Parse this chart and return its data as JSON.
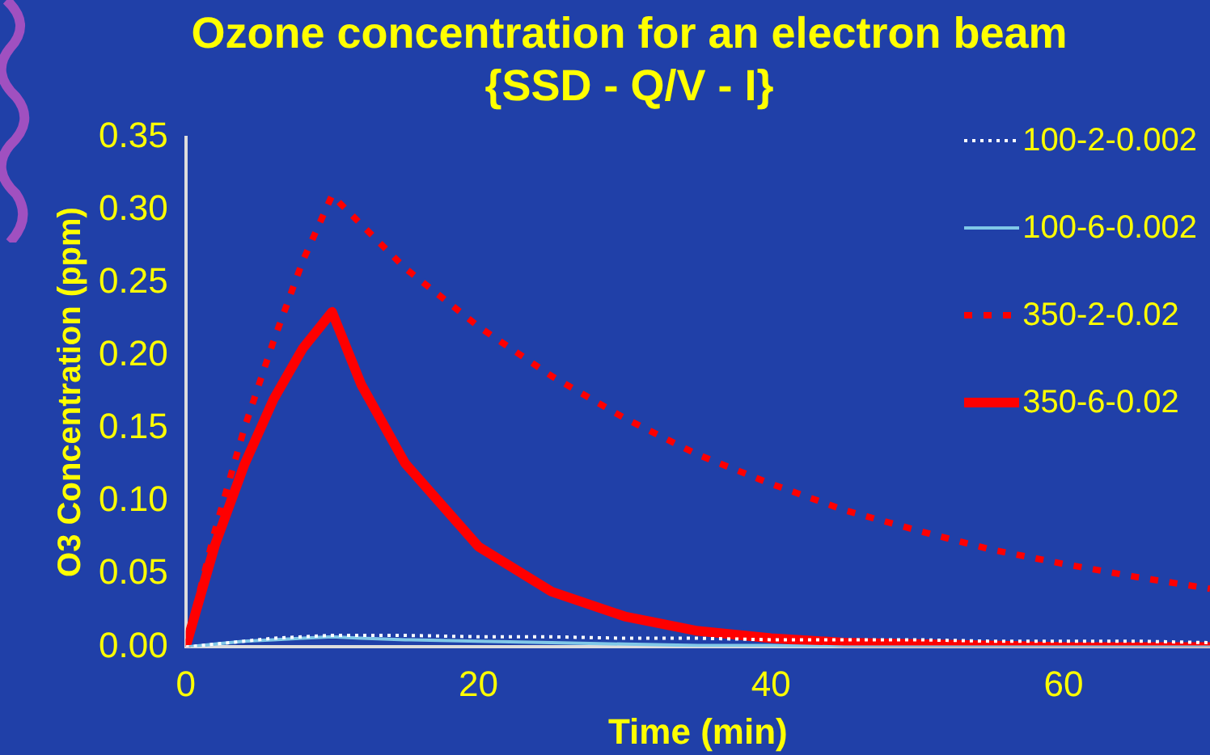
{
  "chart_data": {
    "type": "line",
    "title": "Ozone concentration for an electron beam",
    "subtitle": "{SSD - Q/V - I}",
    "xlabel": "Time (min)",
    "ylabel": "O3 Concentration (ppm)",
    "x": [
      0,
      2,
      4,
      6,
      8,
      10,
      12,
      15,
      20,
      25,
      30,
      35,
      40,
      45,
      50,
      55,
      60,
      65,
      70
    ],
    "series": [
      {
        "name": "100-2-0.002",
        "color": "#ffffff",
        "line_style": "dotted",
        "values": [
          0,
          0.002,
          0.004,
          0.006,
          0.007,
          0.008,
          0.008,
          0.008,
          0.007,
          0.007,
          0.006,
          0.006,
          0.005,
          0.005,
          0.005,
          0.004,
          0.004,
          0.004,
          0.003
        ]
      },
      {
        "name": "100-6-0.002",
        "color": "#80c8e8",
        "line_style": "solid",
        "values": [
          0,
          0.002,
          0.004,
          0.005,
          0.006,
          0.007,
          0.006,
          0.005,
          0.004,
          0.003,
          0.002,
          0.001,
          0.001,
          0,
          0,
          0,
          0,
          0,
          0
        ]
      },
      {
        "name": "350-2-0.02",
        "color": "#ff0000",
        "line_style": "dotted",
        "values": [
          0,
          0.08,
          0.15,
          0.21,
          0.265,
          0.31,
          0.29,
          0.26,
          0.22,
          0.186,
          0.157,
          0.132,
          0.112,
          0.094,
          0.08,
          0.067,
          0.057,
          0.048,
          0.04
        ]
      },
      {
        "name": "350-6-0.02",
        "color": "#ff0000",
        "line_style": "solid",
        "values": [
          0,
          0.07,
          0.125,
          0.17,
          0.205,
          0.23,
          0.18,
          0.126,
          0.069,
          0.038,
          0.021,
          0.011,
          0.006,
          0.003,
          0.002,
          0.001,
          0,
          0,
          0
        ]
      }
    ],
    "xlim": [
      0,
      70
    ],
    "xticks": [
      0,
      20,
      40,
      60
    ],
    "ylim": [
      0,
      0.35
    ],
    "yticks": [
      {
        "value": 0,
        "label": "0.00"
      },
      {
        "value": 0.05,
        "label": "0.05"
      },
      {
        "value": 0.1,
        "label": "0.10"
      },
      {
        "value": 0.15,
        "label": "0.15"
      },
      {
        "value": 0.2,
        "label": "0.20"
      },
      {
        "value": 0.25,
        "label": "0.25"
      },
      {
        "value": 0.3,
        "label": "0.30"
      },
      {
        "value": 0.35,
        "label": "0.35"
      }
    ],
    "grid": false,
    "legend": "top right",
    "marker": "none"
  }
}
